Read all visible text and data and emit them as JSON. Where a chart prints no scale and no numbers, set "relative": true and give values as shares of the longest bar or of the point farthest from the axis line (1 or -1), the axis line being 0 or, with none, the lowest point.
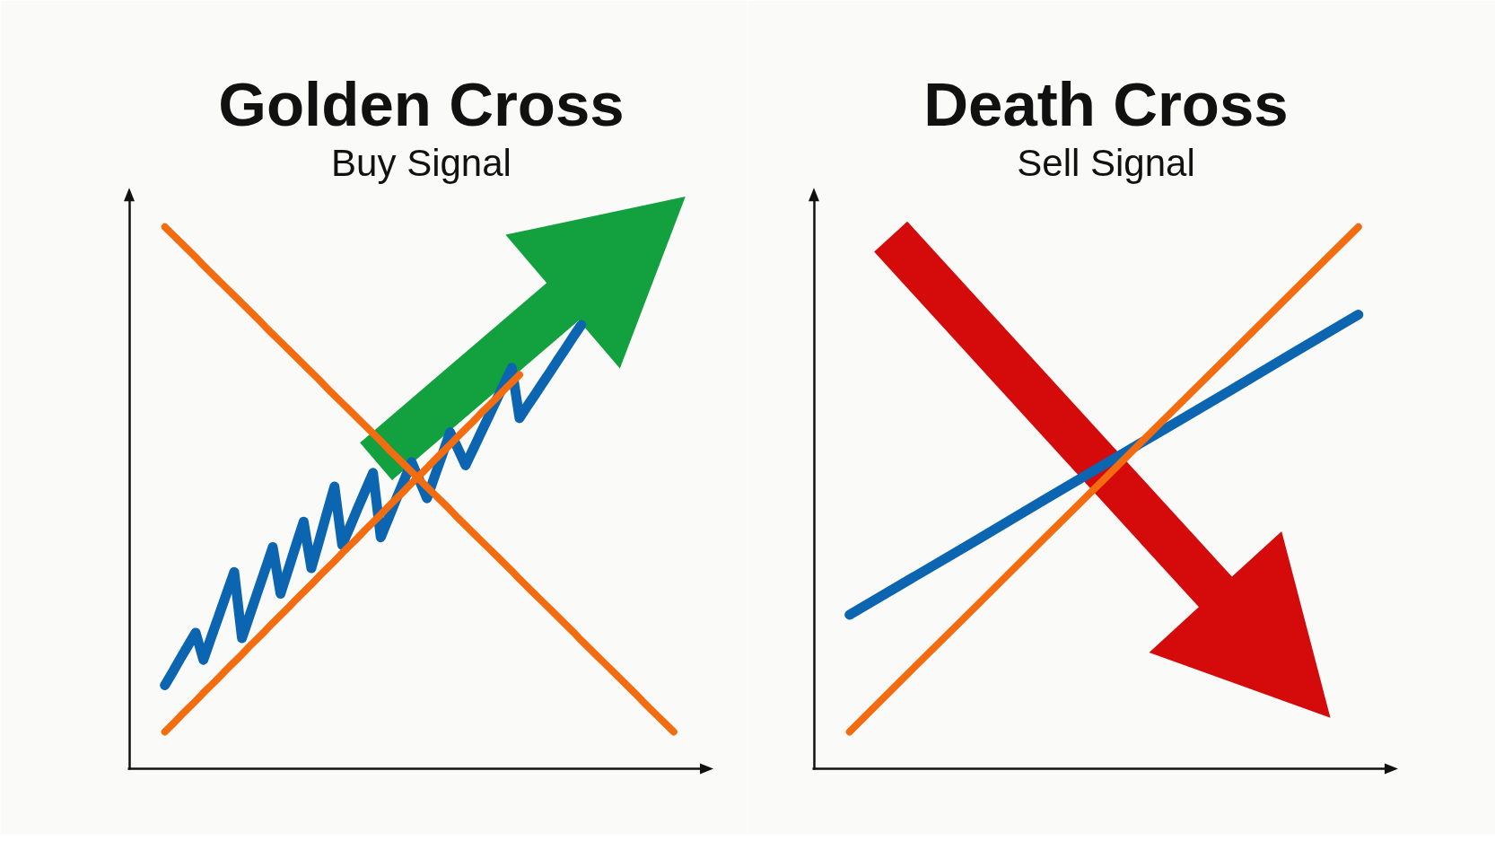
{
  "chart_data": [
    {
      "type": "line",
      "title": "Golden Cross",
      "subtitle": "Buy Signal",
      "relative": true,
      "categories": [
        null,
        null,
        null,
        null,
        null,
        null,
        null,
        null,
        null,
        null,
        null,
        null,
        null,
        null,
        null,
        null,
        null,
        null,
        null,
        null,
        null,
        null,
        null,
        null,
        null,
        null,
        null,
        null,
        null,
        null,
        null,
        null,
        null,
        null,
        null,
        null,
        null,
        null,
        null,
        null,
        null,
        null,
        null,
        null,
        null,
        null,
        null,
        null,
        null,
        null,
        null,
        null,
        null,
        null,
        null,
        null,
        null,
        null,
        null,
        null,
        null,
        null,
        null,
        null,
        null,
        null,
        null
      ],
      "series": [
        {
          "color": "#0b65b1",
          "values": [
            0.154,
            0.178,
            0.203,
            0.227,
            0.251,
            0.201,
            0.242,
            0.282,
            0.323,
            0.363,
            0.241,
            0.283,
            0.325,
            0.367,
            0.409,
            0.323,
            0.367,
            0.412,
            0.456,
            0.37,
            0.42,
            0.471,
            0.521,
            0.413,
            0.446,
            0.48,
            0.513,
            0.546,
            0.427,
            0.462,
            0.497,
            0.531,
            0.566,
            0.533,
            0.499,
            0.54,
            0.58,
            0.621,
            0.591,
            0.56,
            0.59,
            0.62,
            0.65,
            0.68,
            0.71,
            0.74,
            0.647,
            0.669,
            0.69,
            0.712,
            0.733,
            0.755,
            0.776,
            0.798,
            0.819,
            null,
            null,
            null,
            null,
            null,
            null,
            null,
            null,
            null,
            null,
            null,
            null
          ]
        },
        {
          "color": "#f36c10",
          "values": [
            1.0,
            0.986,
            0.972,
            0.958,
            0.944,
            0.929,
            0.915,
            0.901,
            0.887,
            0.873,
            0.859,
            0.845,
            0.831,
            0.816,
            0.802,
            0.788,
            0.774,
            0.76,
            0.746,
            0.732,
            0.718,
            0.703,
            0.689,
            0.675,
            0.661,
            0.647,
            0.633,
            0.619,
            0.605,
            0.59,
            0.576,
            0.562,
            0.548,
            0.534,
            0.52,
            0.506,
            0.492,
            0.478,
            0.463,
            0.449,
            0.435,
            0.421,
            0.407,
            0.393,
            0.379,
            0.365,
            0.35,
            0.336,
            0.322,
            0.308,
            0.294,
            0.28,
            0.266,
            0.252,
            0.237,
            0.223,
            0.209,
            0.195,
            0.181,
            0.167,
            0.153,
            0.139,
            0.124,
            0.11,
            0.096,
            0.082,
            0.068
          ]
        },
        {
          "color": "#f36c10",
          "values": [
            0.068,
            0.082,
            0.097,
            0.111,
            0.125,
            0.14,
            0.154,
            0.168,
            0.183,
            0.197,
            0.211,
            0.226,
            0.24,
            0.254,
            0.269,
            0.283,
            0.297,
            0.312,
            0.326,
            0.34,
            0.355,
            0.369,
            0.383,
            0.398,
            0.412,
            0.426,
            0.441,
            0.455,
            0.469,
            0.484,
            0.498,
            0.512,
            0.527,
            0.541,
            0.555,
            0.57,
            0.584,
            0.598,
            0.613,
            0.627,
            0.641,
            0.656,
            0.67,
            0.684,
            0.699,
            0.713,
            0.727,
            null,
            null,
            null,
            null,
            null,
            null,
            null,
            null,
            null,
            null,
            null,
            null,
            null,
            null,
            null,
            null,
            null,
            null,
            null,
            null
          ]
        }
      ]
    },
    {
      "type": "line",
      "title": "Death Cross",
      "subtitle": "Sell Signal",
      "relative": true,
      "categories": [
        null,
        null,
        null,
        null,
        null,
        null,
        null,
        null,
        null
      ],
      "series": [
        {
          "color": "#0b65b1",
          "values": [
            0.284,
            0.353,
            0.422,
            0.492,
            0.561,
            0.63,
            0.699,
            0.769,
            0.838
          ]
        },
        {
          "color": "#f36c10",
          "values": [
            0.068,
            0.185,
            0.301,
            0.418,
            0.534,
            0.651,
            0.767,
            0.884,
            1.0
          ]
        }
      ]
    }
  ]
}
